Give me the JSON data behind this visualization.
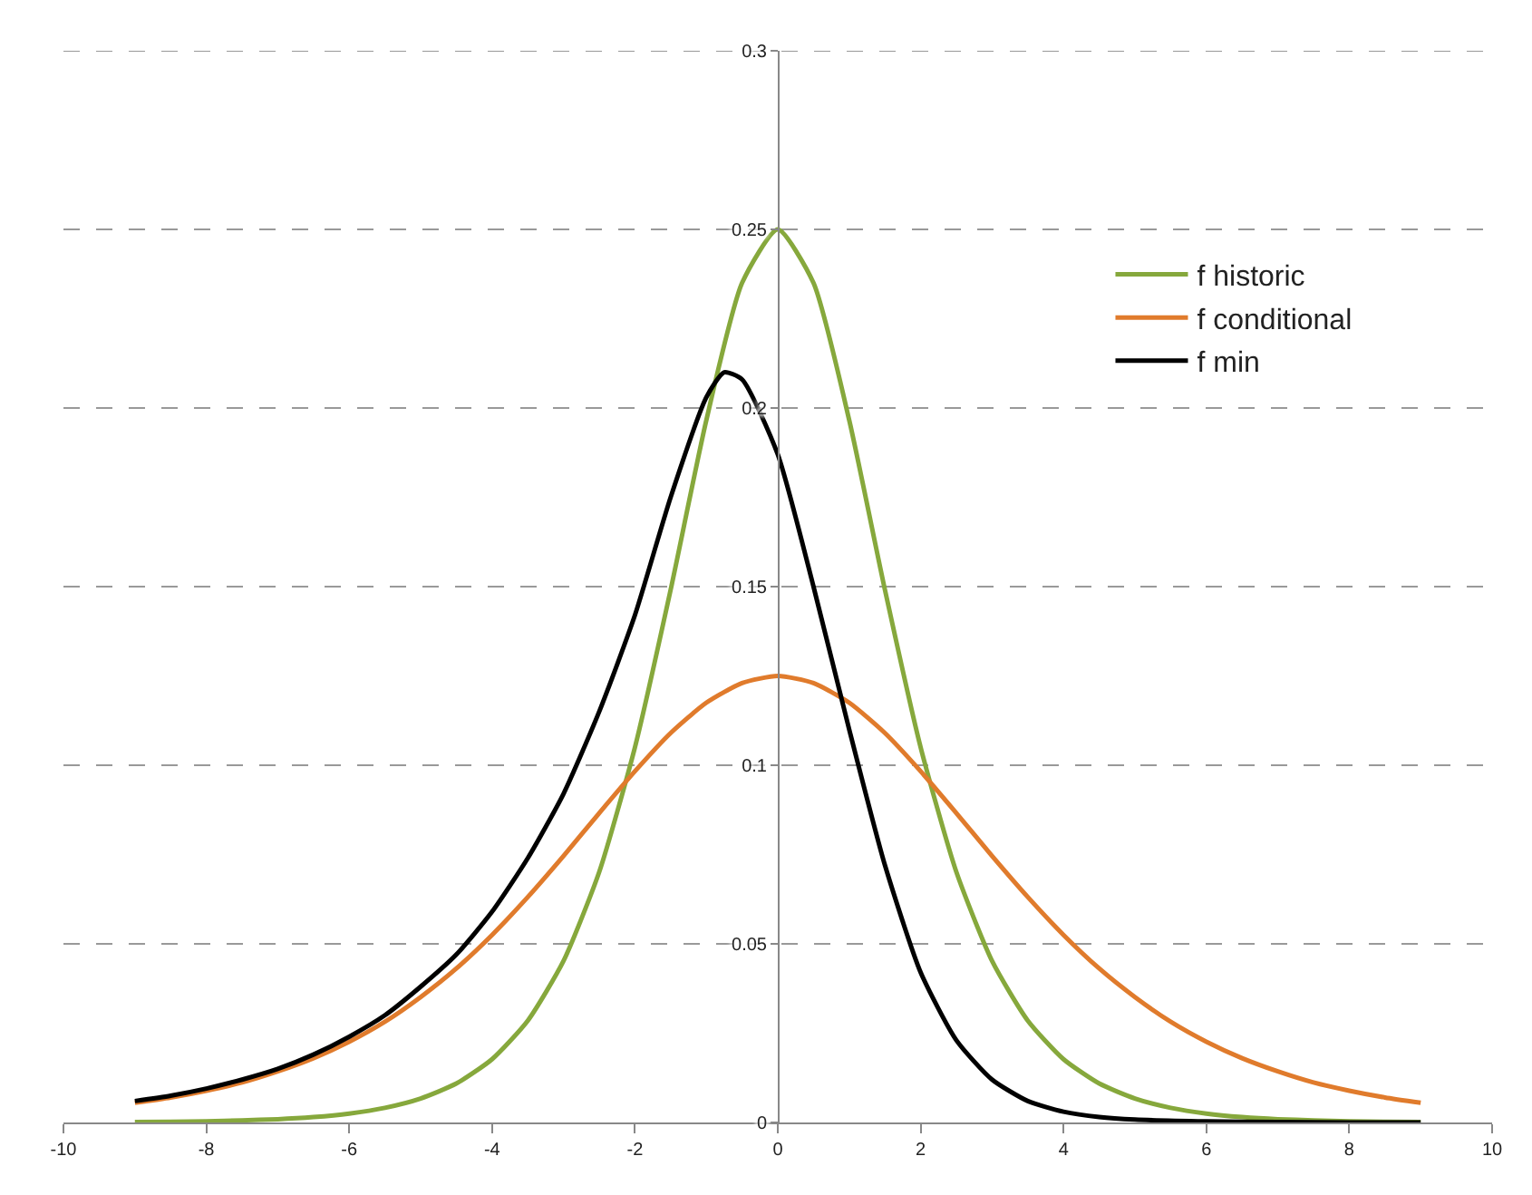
{
  "chart_data": {
    "type": "line",
    "xlim": [
      -10,
      10
    ],
    "xticks": [
      -10,
      -8,
      -6,
      -4,
      -2,
      0,
      2,
      4,
      6,
      8,
      10
    ],
    "ylim": [
      0,
      0.3
    ],
    "yticks": [
      0,
      0.05,
      0.1,
      0.15,
      0.2,
      0.25,
      0.3
    ],
    "grid": "y",
    "legend": "right",
    "marker": "none",
    "line_style": "solid",
    "series": [
      {
        "name": "f historic",
        "color": "#86a83c",
        "x": [
          -9,
          -8.5,
          -8,
          -7.5,
          -7,
          -6.5,
          -6,
          -5.5,
          -5,
          -4.5,
          -4,
          -3.5,
          -3,
          -2.5,
          -2,
          -1.5,
          -1,
          -0.5,
          0,
          0.5,
          1,
          1.5,
          2,
          2.5,
          3,
          3.5,
          4,
          4.5,
          5,
          5.5,
          6,
          6.5,
          7,
          7.5,
          8,
          8.5,
          9
        ],
        "values": [
          0.0001,
          0.0002,
          0.0003,
          0.0006,
          0.0009,
          0.0015,
          0.0025,
          0.0041,
          0.0067,
          0.0109,
          0.0177,
          0.0285,
          0.0452,
          0.0701,
          0.105,
          0.1491,
          0.1966,
          0.235,
          0.25,
          0.235,
          0.1966,
          0.1491,
          0.105,
          0.0701,
          0.0452,
          0.0285,
          0.0177,
          0.0109,
          0.0067,
          0.0041,
          0.0025,
          0.0015,
          0.0009,
          0.0006,
          0.0003,
          0.0002,
          0.0001
        ]
      },
      {
        "name": "f conditional",
        "color": "#e07b2c",
        "x": [
          -9,
          -8.5,
          -8,
          -7.5,
          -7,
          -6.5,
          -6,
          -5.5,
          -5,
          -4.5,
          -4,
          -3.5,
          -3,
          -2.5,
          -2,
          -1.5,
          -1,
          -0.5,
          0,
          0.5,
          1,
          1.5,
          2,
          2.5,
          3,
          3.5,
          4,
          4.5,
          5,
          5.5,
          6,
          6.5,
          7,
          7.5,
          8,
          8.5,
          9
        ],
        "values": [
          0.0055,
          0.007,
          0.0089,
          0.0112,
          0.0143,
          0.018,
          0.0226,
          0.0282,
          0.0351,
          0.0431,
          0.0525,
          0.0631,
          0.0746,
          0.0866,
          0.0983,
          0.109,
          0.1175,
          0.123,
          0.125,
          0.123,
          0.1175,
          0.109,
          0.0983,
          0.0866,
          0.0746,
          0.0631,
          0.0525,
          0.0431,
          0.0351,
          0.0282,
          0.0226,
          0.018,
          0.0143,
          0.0112,
          0.0089,
          0.007,
          0.0055
        ]
      },
      {
        "name": "f min",
        "color": "#000000",
        "x": [
          -9,
          -8.5,
          -8,
          -7.5,
          -7,
          -6.5,
          -6,
          -5.5,
          -5,
          -4.5,
          -4,
          -3.5,
          -3,
          -2.5,
          -2,
          -1.5,
          -1,
          -0.75,
          -0.5,
          0,
          0.5,
          1,
          1.5,
          2,
          2.5,
          3,
          3.5,
          4,
          4.5,
          5,
          6,
          7,
          8,
          9
        ],
        "values": [
          0.006,
          0.0075,
          0.0095,
          0.012,
          0.015,
          0.019,
          0.024,
          0.03,
          0.038,
          0.047,
          0.059,
          0.074,
          0.092,
          0.115,
          0.142,
          0.175,
          0.203,
          0.21,
          0.208,
          0.187,
          0.15,
          0.11,
          0.072,
          0.042,
          0.023,
          0.012,
          0.006,
          0.003,
          0.0015,
          0.0008,
          0.0003,
          0.0001,
          0,
          0
        ]
      }
    ]
  }
}
